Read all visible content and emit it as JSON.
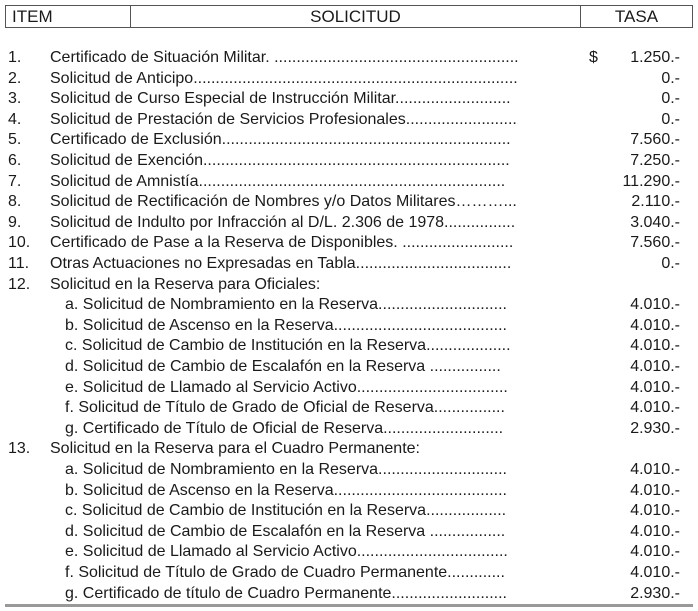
{
  "header": {
    "item": "ITEM",
    "solicitud": "SOLICITUD",
    "tasa": "TASA"
  },
  "rows": [
    {
      "num": "1.",
      "text": "Certificado de Situación Militar. .......................................................",
      "currency": "$",
      "value": "1.250.-"
    },
    {
      "num": "2.",
      "text": "Solicitud de Anticipo.........................................................................",
      "value": "0.-"
    },
    {
      "num": "3.",
      "text": "Solicitud de Curso Especial de Instrucción Militar..........................",
      "value": "0.-"
    },
    {
      "num": "4.",
      "text": "Solicitud de Prestación de Servicios Profesionales.........................",
      "value": "0.-"
    },
    {
      "num": "5.",
      "text": "Certificado de Exclusión.................................................................",
      "value": "7.560.-"
    },
    {
      "num": "6.",
      "text": "Solicitud de Exención.....................................................................",
      "value": "7.250.-"
    },
    {
      "num": "7.",
      "text": "Solicitud de Amnistía.....................................................................",
      "value": "11.290.-"
    },
    {
      "num": "8.",
      "text": "Solicitud de Rectificación de Nombres y/o Datos Militares………...",
      "value": "2.110.-"
    },
    {
      "num": "9.",
      "text": "Solicitud de Indulto por Infracción al D/L. 2.306 de 1978................",
      "value": "3.040.-"
    },
    {
      "num": "10.",
      "text": "Certificado de Pase a la Reserva de Disponibles.  .........................",
      "value": "7.560.-"
    },
    {
      "num": "11.",
      "text": "Otras Actuaciones no Expresadas en Tabla...................................",
      "value": "0.-"
    },
    {
      "num": "12.",
      "text": "Solicitud en la Reserva para Oficiales:",
      "value": ""
    },
    {
      "num": "",
      "sub": true,
      "text": "a. Solicitud de Nombramiento en la Reserva.............................",
      "value": "4.010.-"
    },
    {
      "num": "",
      "sub": true,
      "text": "b. Solicitud de Ascenso en la Reserva.......................................",
      "value": "4.010.-"
    },
    {
      "num": "",
      "sub": true,
      "text": "c. Solicitud de Cambio de Institución en la Reserva...................",
      "value": "4.010.-"
    },
    {
      "num": "",
      "sub": true,
      "text": "d. Solicitud de Cambio de Escalafón en la Reserva  ................",
      "value": "4.010.-"
    },
    {
      "num": "",
      "sub": true,
      "text": "e. Solicitud de Llamado al Servicio Activo..................................",
      "value": "4.010.-"
    },
    {
      "num": "",
      "sub": true,
      "text": "f. Solicitud de Título de Grado de Oficial de Reserva................",
      "value": "4.010.-"
    },
    {
      "num": "",
      "sub": true,
      "text": "g. Certificado de Título de Oficial de Reserva...........................",
      "value": "2.930.-"
    },
    {
      "num": "13.",
      "text": "Solicitud en la Reserva para el Cuadro Permanente:",
      "value": ""
    },
    {
      "num": "",
      "sub": true,
      "text": "a. Solicitud de Nombramiento en la Reserva.............................",
      "value": "4.010.-"
    },
    {
      "num": "",
      "sub": true,
      "text": "b. Solicitud de Ascenso en la Reserva.......................................",
      "value": "4.010.-"
    },
    {
      "num": "",
      "sub": true,
      "text": "c. Solicitud de Cambio de Institución en la Reserva..................",
      "value": "4.010.-"
    },
    {
      "num": "",
      "sub": true,
      "text": "d. Solicitud de Cambio de Escalafón en la Reserva .................",
      "value": "4.010.-"
    },
    {
      "num": "",
      "sub": true,
      "text": "e. Solicitud de Llamado al Servicio Activo..................................",
      "value": "4.010.-"
    },
    {
      "num": "",
      "sub": true,
      "text": "f. Solicitud de Título de Grado de Cuadro Permanente.............",
      "value": "4.010.-"
    },
    {
      "num": "",
      "sub": true,
      "text": "g. Certificado de título de Cuadro Permanente..........................",
      "value": "2.930.-"
    }
  ]
}
